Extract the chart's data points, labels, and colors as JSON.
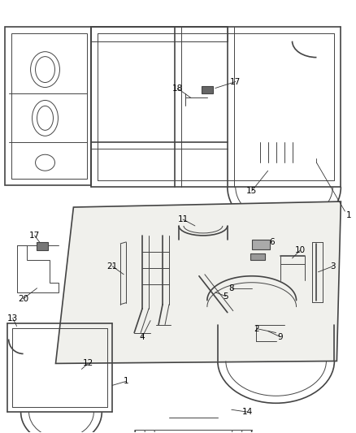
{
  "background_color": "#ffffff",
  "line_color": "#444444",
  "label_color": "#000000",
  "label_fontsize": 7.5,
  "fig_width": 4.38,
  "fig_height": 5.33,
  "dpi": 100
}
